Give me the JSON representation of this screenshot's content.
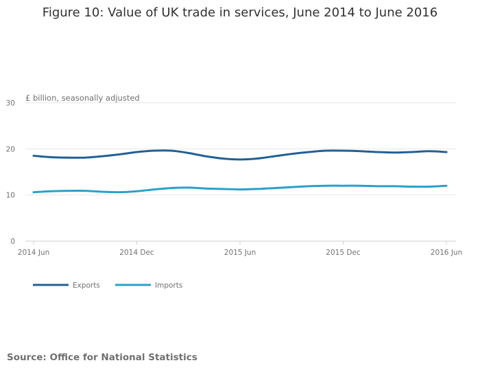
{
  "chart_data": {
    "type": "line",
    "title": "Figure 10: Value of UK trade in services, June 2014 to June 2016",
    "ylabel": "£ billion, seasonally adjusted",
    "xlabel": "",
    "ylim": [
      0,
      30
    ],
    "yticks": [
      0,
      10,
      20,
      30
    ],
    "x": [
      "2014 Jun",
      "2014 Jul",
      "2014 Aug",
      "2014 Sep",
      "2014 Oct",
      "2014 Nov",
      "2014 Dec",
      "2015 Jan",
      "2015 Feb",
      "2015 Mar",
      "2015 Apr",
      "2015 May",
      "2015 Jun",
      "2015 Jul",
      "2015 Aug",
      "2015 Sep",
      "2015 Oct",
      "2015 Nov",
      "2015 Dec",
      "2016 Jan",
      "2016 Feb",
      "2016 Mar",
      "2016 Apr",
      "2016 May",
      "2016 Jun"
    ],
    "xtick_labels": [
      "2014 Jun",
      "2014 Dec",
      "2015 Jun",
      "2015 Dec",
      "2016 Jun"
    ],
    "grid": true,
    "legend": "bottom-left",
    "series": [
      {
        "name": "Exports",
        "color": "#206095",
        "values": [
          18.5,
          18.2,
          18.1,
          18.1,
          18.4,
          18.8,
          19.3,
          19.6,
          19.6,
          19.1,
          18.4,
          17.9,
          17.7,
          17.9,
          18.4,
          18.9,
          19.3,
          19.6,
          19.6,
          19.5,
          19.3,
          19.2,
          19.3,
          19.5,
          19.3
        ]
      },
      {
        "name": "Imports",
        "color": "#27a0cc",
        "values": [
          10.6,
          10.8,
          10.9,
          10.9,
          10.7,
          10.6,
          10.8,
          11.2,
          11.5,
          11.6,
          11.4,
          11.3,
          11.2,
          11.3,
          11.5,
          11.7,
          11.9,
          12.0,
          12.0,
          12.0,
          11.9,
          11.9,
          11.8,
          11.8,
          12.0
        ]
      }
    ]
  },
  "source": "Source: Office for National Statistics"
}
